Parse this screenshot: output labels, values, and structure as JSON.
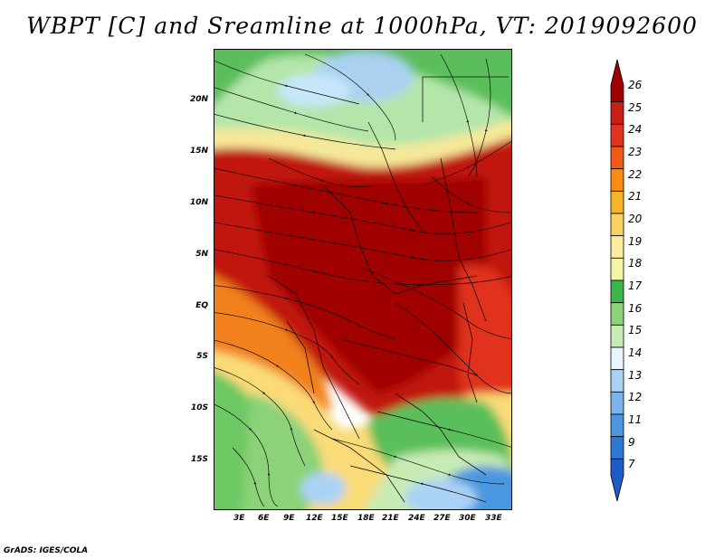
{
  "title": "WBPT [C] and Sreamline at 1000hPa, VT: 2019092600",
  "footer": "GrADS: IGES/COLA",
  "y_ticks": [
    "20N",
    "15N",
    "10N",
    "5N",
    "EQ",
    "5S",
    "10S",
    "15S"
  ],
  "x_ticks": [
    "3E",
    "6E",
    "9E",
    "12E",
    "15E",
    "18E",
    "21E",
    "24E",
    "27E",
    "30E",
    "33E"
  ],
  "colorbar": {
    "labels": [
      "26",
      "25",
      "24",
      "23",
      "22",
      "21",
      "20",
      "19",
      "18",
      "17",
      "16",
      "15",
      "14",
      "13",
      "12",
      "11",
      "9",
      "7"
    ],
    "colors": [
      "#a00000",
      "#c81e14",
      "#e0321e",
      "#f05a14",
      "#f88c14",
      "#f8b428",
      "#fad264",
      "#fbeca0",
      "#f2f5a8",
      "#3cb44b",
      "#8cd278",
      "#c8ebb4",
      "#e6f5ff",
      "#aad2f5",
      "#7ab4eb",
      "#4b96e1",
      "#2d78d2",
      "#1e5ac8"
    ]
  },
  "map_colors": {
    "north_green": "#5abf5a",
    "north_light": "#b4e6aa",
    "north_blue": "#aad2f0",
    "sahel_yellow": "#f6e89a",
    "hot_red": "#c0140c",
    "dark_red": "#a00000",
    "orange": "#f2801e",
    "south_yellow": "#fadb78",
    "south_green": "#6ec864",
    "south_blue": "#4b96e1"
  }
}
